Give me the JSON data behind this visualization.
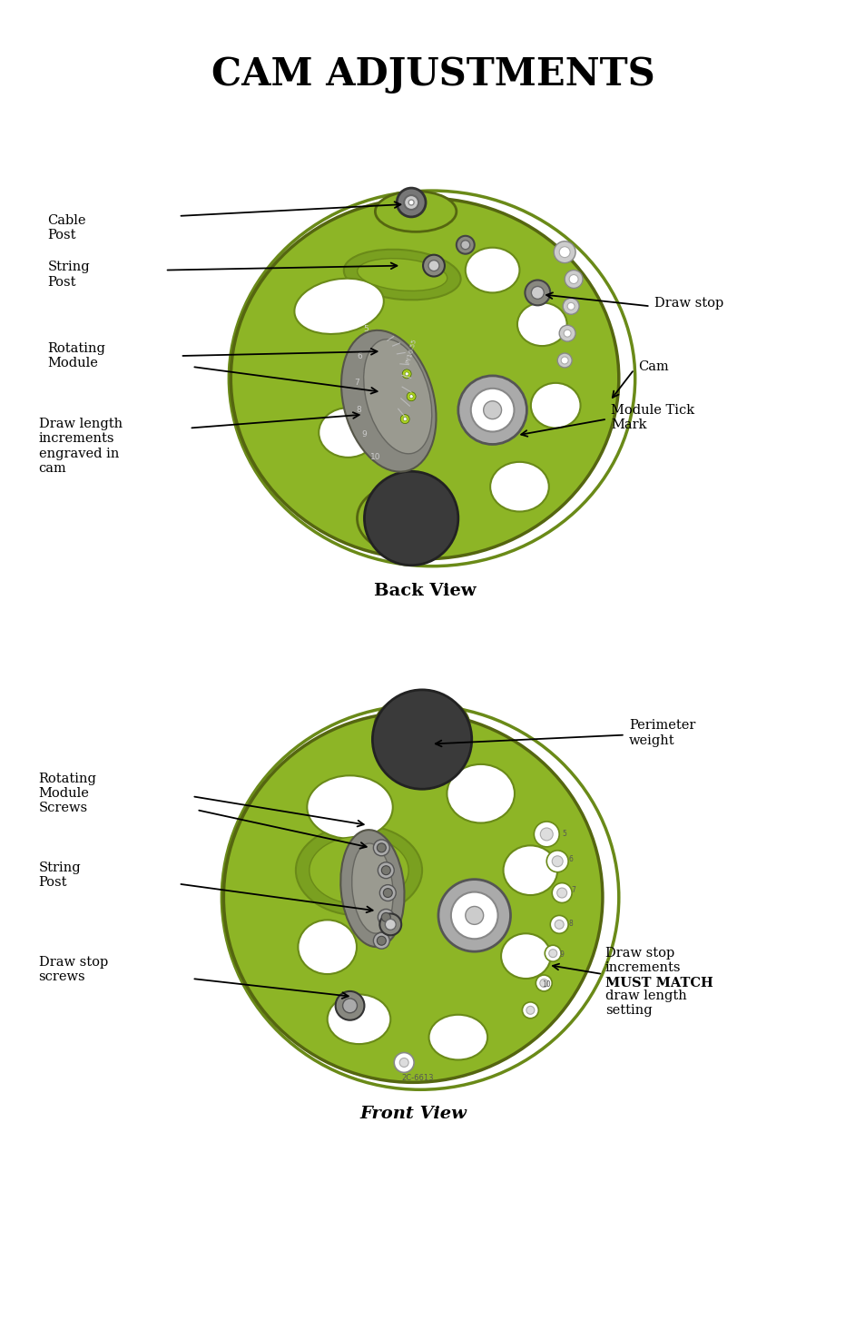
{
  "title": "CAM ADJUSTMENTS",
  "title_fontsize": 30,
  "background_color": "#ffffff",
  "cam_color": "#8db526",
  "cam_dark_color": "#6a8a18",
  "cam_outline_color": "#556610",
  "cam_inner_color": "#7aa020",
  "darker_part_color": "#3a3a3a",
  "module_color": "#888880",
  "light_gray": "#aaaaaa",
  "mid_gray": "#777777",
  "white_color": "#ffffff",
  "back_view_label": "Back View",
  "front_view_label": "Front View"
}
